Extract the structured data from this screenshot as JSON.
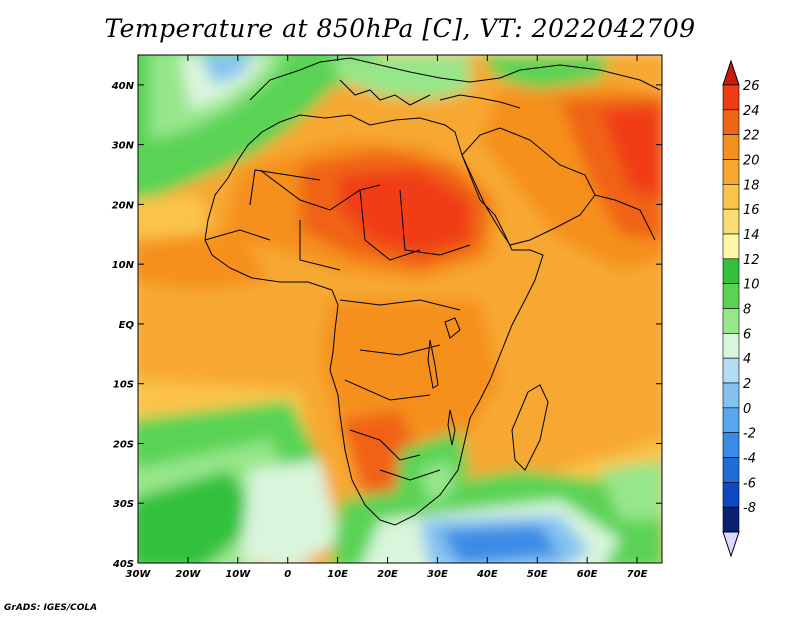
{
  "title": "Temperature at 850hPa [C], VT: 2022042709",
  "credit": "GrADS: IGES/COLA",
  "map": {
    "lon_range": [
      -30,
      75
    ],
    "lat_range": [
      -40,
      45
    ],
    "lat_labels": [
      "40N",
      "30N",
      "20N",
      "10N",
      "EQ",
      "10S",
      "20S",
      "30S",
      "40S"
    ],
    "lat_values": [
      40,
      30,
      20,
      10,
      0,
      -10,
      -20,
      -30,
      -40
    ],
    "lon_labels": [
      "30W",
      "20W",
      "10W",
      "0",
      "10E",
      "20E",
      "30E",
      "40E",
      "50E",
      "60E",
      "70E"
    ],
    "lon_values": [
      -30,
      -20,
      -10,
      0,
      10,
      20,
      30,
      40,
      50,
      60,
      70
    ]
  },
  "colorbar": {
    "labels": [
      "26",
      "24",
      "22",
      "20",
      "18",
      "16",
      "14",
      "12",
      "10",
      "8",
      "6",
      "4",
      "2",
      "0",
      "-2",
      "-4",
      "-6",
      "-8"
    ],
    "levels": [
      26,
      24,
      22,
      20,
      18,
      16,
      14,
      12,
      10,
      8,
      6,
      4,
      2,
      0,
      -2,
      -4,
      -6,
      -8
    ],
    "colors": [
      "#f03c14",
      "#f06418",
      "#f5901e",
      "#f7a833",
      "#fbc44a",
      "#f9dc74",
      "#fcf6a8",
      "#33c13e",
      "#5ad354",
      "#96e68a",
      "#d9f5db",
      "#b3dcf6",
      "#85c2f2",
      "#58a6ee",
      "#3a8be5",
      "#216bd7",
      "#1048c2",
      "#0a2070"
    ],
    "top_color": "#cc1a0c",
    "bottom_color": "#dcd8ff"
  }
}
